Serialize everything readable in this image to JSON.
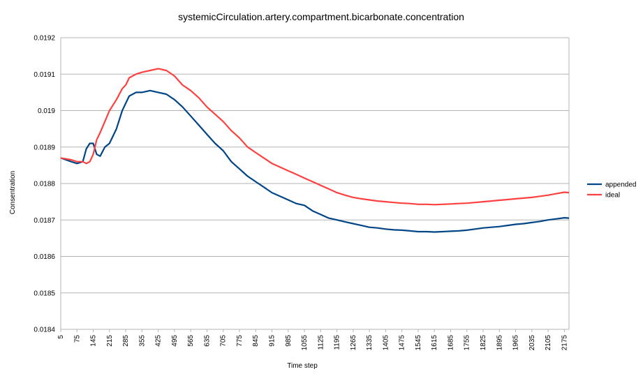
{
  "chart_data": {
    "type": "line",
    "title": "systemicCirculation.artery.compartment.bicarbonate.concentration",
    "xlabel": "Time step",
    "ylabel": "Consentration",
    "ylim": [
      0.0184,
      0.0192
    ],
    "y_ticks": [
      "0.0184",
      "0.0185",
      "0.0186",
      "0.0187",
      "0.0188",
      "0.0189",
      "0.019",
      "0.0191",
      "0.0192"
    ],
    "x_ticks": [
      "5",
      "75",
      "145",
      "215",
      "285",
      "355",
      "425",
      "495",
      "565",
      "635",
      "705",
      "775",
      "845",
      "915",
      "985",
      "1055",
      "1125",
      "1195",
      "1265",
      "1335",
      "1405",
      "1475",
      "1545",
      "1615",
      "1685",
      "1755",
      "1825",
      "1895",
      "1965",
      "2035",
      "2105",
      "2175"
    ],
    "xlim": [
      5,
      2195
    ],
    "grid": "horizontal",
    "legend_position": "right",
    "series": [
      {
        "name": "appended",
        "color": "#004586",
        "x": [
          5,
          50,
          75,
          100,
          115,
          130,
          145,
          160,
          175,
          195,
          215,
          245,
          270,
          285,
          300,
          330,
          355,
          390,
          425,
          460,
          495,
          530,
          565,
          600,
          635,
          670,
          705,
          740,
          775,
          810,
          845,
          880,
          915,
          950,
          985,
          1020,
          1055,
          1090,
          1125,
          1160,
          1195,
          1230,
          1265,
          1300,
          1335,
          1370,
          1405,
          1440,
          1475,
          1510,
          1545,
          1580,
          1615,
          1650,
          1685,
          1720,
          1755,
          1790,
          1825,
          1860,
          1895,
          1930,
          1965,
          2000,
          2035,
          2070,
          2105,
          2140,
          2175,
          2195
        ],
        "y": [
          0.01887,
          0.01886,
          0.018855,
          0.01886,
          0.018895,
          0.01891,
          0.01891,
          0.01888,
          0.018875,
          0.0189,
          0.01891,
          0.01895,
          0.019,
          0.01902,
          0.01904,
          0.01905,
          0.01905,
          0.019055,
          0.01905,
          0.019045,
          0.01903,
          0.01901,
          0.018985,
          0.01896,
          0.018935,
          0.01891,
          0.01889,
          0.01886,
          0.01884,
          0.01882,
          0.018805,
          0.01879,
          0.018775,
          0.018765,
          0.018755,
          0.018745,
          0.01874,
          0.018725,
          0.018715,
          0.018705,
          0.0187,
          0.018695,
          0.01869,
          0.018685,
          0.01868,
          0.018678,
          0.018675,
          0.018673,
          0.018672,
          0.01867,
          0.018668,
          0.018668,
          0.018667,
          0.018668,
          0.018669,
          0.01867,
          0.018672,
          0.018675,
          0.018678,
          0.01868,
          0.018682,
          0.018685,
          0.018688,
          0.01869,
          0.018693,
          0.018696,
          0.0187,
          0.018703,
          0.018706,
          0.018705
        ]
      },
      {
        "name": "ideal",
        "color": "#ff4040",
        "x": [
          5,
          50,
          75,
          100,
          115,
          130,
          145,
          160,
          175,
          195,
          215,
          245,
          270,
          285,
          300,
          330,
          355,
          390,
          425,
          460,
          495,
          530,
          565,
          600,
          635,
          670,
          705,
          740,
          775,
          810,
          845,
          880,
          915,
          950,
          985,
          1020,
          1055,
          1090,
          1125,
          1160,
          1195,
          1230,
          1265,
          1300,
          1335,
          1370,
          1405,
          1440,
          1475,
          1510,
          1545,
          1580,
          1615,
          1650,
          1685,
          1720,
          1755,
          1790,
          1825,
          1860,
          1895,
          1930,
          1965,
          2000,
          2035,
          2070,
          2105,
          2140,
          2175,
          2195
        ],
        "y": [
          0.01887,
          0.018865,
          0.01886,
          0.01886,
          0.018855,
          0.01886,
          0.01888,
          0.01892,
          0.01894,
          0.01897,
          0.019,
          0.01903,
          0.01906,
          0.01907,
          0.01909,
          0.0191,
          0.019105,
          0.01911,
          0.019115,
          0.01911,
          0.019095,
          0.01907,
          0.019055,
          0.019035,
          0.01901,
          0.01899,
          0.01897,
          0.018945,
          0.018925,
          0.0189,
          0.018885,
          0.01887,
          0.018855,
          0.018845,
          0.018835,
          0.018825,
          0.018815,
          0.018805,
          0.018795,
          0.018785,
          0.018775,
          0.018768,
          0.018762,
          0.018758,
          0.018755,
          0.018752,
          0.01875,
          0.018748,
          0.018746,
          0.018745,
          0.018743,
          0.018743,
          0.018742,
          0.018743,
          0.018744,
          0.018745,
          0.018746,
          0.018748,
          0.01875,
          0.018752,
          0.018754,
          0.018756,
          0.018758,
          0.01876,
          0.018762,
          0.018765,
          0.018768,
          0.018772,
          0.018776,
          0.018775
        ]
      }
    ]
  }
}
